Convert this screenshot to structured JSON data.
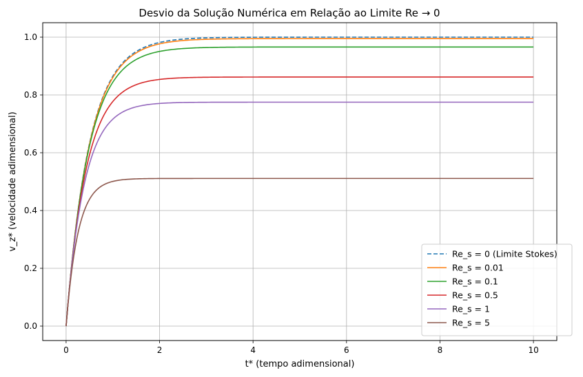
{
  "chart_data": {
    "type": "line",
    "title": "Desvio da Solução Numérica em Relação ao Limite Re → 0",
    "xlabel": "t* (tempo adimensional)",
    "ylabel": "v_z* (velocidade adimensional)",
    "xlim": [
      -0.5,
      10.5
    ],
    "ylim": [
      -0.05,
      1.05
    ],
    "xticks": [
      0,
      2,
      4,
      6,
      8,
      10
    ],
    "xtick_labels": [
      "0",
      "2",
      "4",
      "6",
      "8",
      "10"
    ],
    "yticks": [
      0.0,
      0.2,
      0.4,
      0.6,
      0.8,
      1.0
    ],
    "ytick_labels": [
      "0.0",
      "0.2",
      "0.4",
      "0.6",
      "0.8",
      "1.0"
    ],
    "grid": true,
    "legend_position": "lower-right",
    "x_range": [
      0,
      10
    ],
    "series": [
      {
        "name": "Re_s = 0 (Limite Stokes)",
        "color": "#1f77b4",
        "dash": true,
        "v_terminal": 1.0,
        "rate": 2.0
      },
      {
        "name": "Re_s = 0.01",
        "color": "#ff7f0e",
        "dash": false,
        "v_terminal": 0.995,
        "rate": 2.0
      },
      {
        "name": "Re_s = 0.1",
        "color": "#2ca02c",
        "dash": false,
        "v_terminal": 0.966,
        "rate": 2.07
      },
      {
        "name": "Re_s = 0.5",
        "color": "#d62728",
        "dash": false,
        "v_terminal": 0.862,
        "rate": 2.32
      },
      {
        "name": "Re_s = 1",
        "color": "#9467bd",
        "dash": false,
        "v_terminal": 0.775,
        "rate": 2.58
      },
      {
        "name": "Re_s = 5",
        "color": "#8c564b",
        "dash": false,
        "v_terminal": 0.511,
        "rate": 3.91
      }
    ]
  }
}
